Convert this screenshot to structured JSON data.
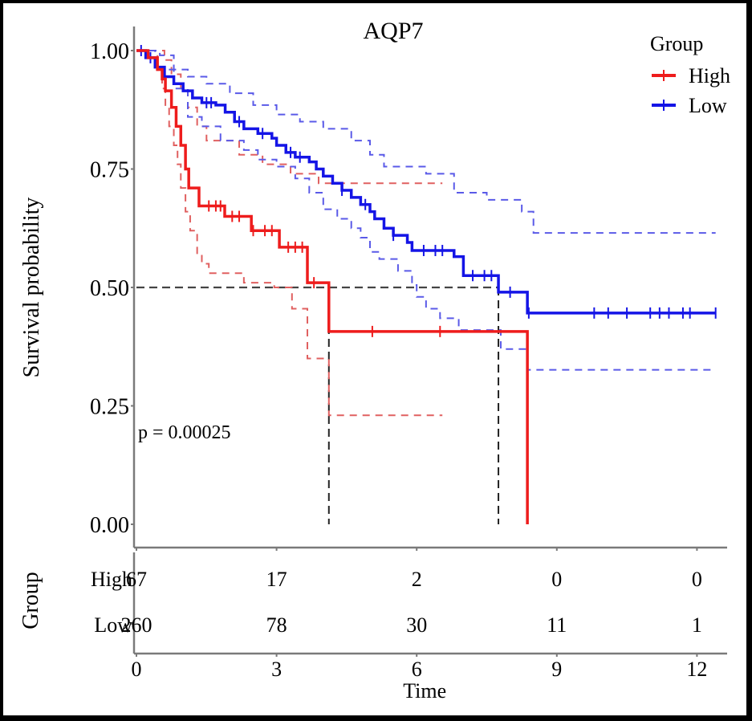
{
  "chart_data": {
    "type": "line",
    "subtype": "kaplan-meier",
    "title": "AQP7",
    "xlabel": "Time",
    "ylabel": "Survival probability",
    "xlim": [
      0,
      12.5
    ],
    "ylim": [
      0,
      1.0
    ],
    "x_ticks": [
      0,
      3,
      6,
      9,
      12
    ],
    "y_ticks": [
      "0.00",
      "0.25",
      "0.50",
      "0.75",
      "1.00"
    ],
    "y_tick_values": [
      0,
      0.25,
      0.5,
      0.75,
      1.0
    ],
    "grid": false,
    "legend": {
      "title": "Group",
      "placement": "top-right",
      "entries": [
        {
          "label": "High",
          "color": "#ee1c1c"
        },
        {
          "label": "Low",
          "color": "#1414e6"
        }
      ]
    },
    "annotation": "p = 0.00025",
    "median_line": {
      "y": 0.5,
      "median_times": [
        4.12,
        7.75
      ]
    },
    "series": [
      {
        "name": "High",
        "color": "#ee1c1c",
        "steps": [
          [
            0,
            1.0
          ],
          [
            0.25,
            0.985
          ],
          [
            0.45,
            0.96
          ],
          [
            0.55,
            0.94
          ],
          [
            0.62,
            0.915
          ],
          [
            0.75,
            0.88
          ],
          [
            0.85,
            0.84
          ],
          [
            0.95,
            0.8
          ],
          [
            1.05,
            0.75
          ],
          [
            1.12,
            0.71
          ],
          [
            1.34,
            0.672
          ],
          [
            1.89,
            0.65
          ],
          [
            2.46,
            0.62
          ],
          [
            3.06,
            0.585
          ],
          [
            3.66,
            0.51
          ],
          [
            4.12,
            0.407
          ],
          [
            8.37,
            0.0
          ]
        ],
        "end": 8.37,
        "censor_times": [
          1.55,
          1.7,
          1.8,
          2.05,
          2.2,
          2.5,
          2.75,
          2.9,
          3.25,
          3.4,
          3.55,
          3.8,
          5.05,
          6.5
        ],
        "ci_upper": [
          [
            0,
            1.0
          ],
          [
            0.6,
            0.98
          ],
          [
            0.75,
            0.95
          ],
          [
            0.95,
            0.92
          ],
          [
            1.1,
            0.88
          ],
          [
            1.3,
            0.84
          ],
          [
            1.5,
            0.81
          ],
          [
            2.2,
            0.78
          ],
          [
            2.7,
            0.76
          ],
          [
            3.3,
            0.74
          ],
          [
            3.9,
            0.72
          ]
        ],
        "ci_upper_end": 6.55,
        "ci_lower": [
          [
            0,
            1.0
          ],
          [
            0.45,
            0.96
          ],
          [
            0.55,
            0.92
          ],
          [
            0.62,
            0.88
          ],
          [
            0.7,
            0.84
          ],
          [
            0.8,
            0.8
          ],
          [
            0.88,
            0.76
          ],
          [
            0.95,
            0.71
          ],
          [
            1.05,
            0.66
          ],
          [
            1.15,
            0.62
          ],
          [
            1.3,
            0.57
          ],
          [
            1.4,
            0.55
          ],
          [
            1.55,
            0.53
          ],
          [
            2.3,
            0.51
          ],
          [
            2.95,
            0.5
          ],
          [
            3.33,
            0.455
          ],
          [
            3.66,
            0.35
          ],
          [
            4.12,
            0.23
          ]
        ],
        "ci_lower_end": 6.55
      },
      {
        "name": "Low",
        "color": "#1414e6",
        "steps": [
          [
            0,
            1.0
          ],
          [
            0.2,
            0.985
          ],
          [
            0.4,
            0.965
          ],
          [
            0.6,
            0.945
          ],
          [
            0.8,
            0.93
          ],
          [
            1.0,
            0.915
          ],
          [
            1.2,
            0.9
          ],
          [
            1.4,
            0.89
          ],
          [
            1.7,
            0.885
          ],
          [
            1.9,
            0.87
          ],
          [
            2.1,
            0.85
          ],
          [
            2.3,
            0.835
          ],
          [
            2.6,
            0.825
          ],
          [
            2.9,
            0.815
          ],
          [
            3.0,
            0.8
          ],
          [
            3.2,
            0.785
          ],
          [
            3.4,
            0.775
          ],
          [
            3.7,
            0.765
          ],
          [
            3.85,
            0.75
          ],
          [
            4.0,
            0.735
          ],
          [
            4.2,
            0.72
          ],
          [
            4.4,
            0.705
          ],
          [
            4.6,
            0.69
          ],
          [
            4.8,
            0.675
          ],
          [
            5.0,
            0.66
          ],
          [
            5.1,
            0.645
          ],
          [
            5.3,
            0.625
          ],
          [
            5.5,
            0.61
          ],
          [
            5.8,
            0.595
          ],
          [
            5.9,
            0.578
          ],
          [
            6.8,
            0.565
          ],
          [
            7.0,
            0.525
          ],
          [
            7.75,
            0.49
          ],
          [
            8.37,
            0.446
          ]
        ],
        "end": 12.4,
        "censor_times": [
          0.1,
          0.3,
          1.5,
          1.6,
          2.2,
          2.7,
          3.3,
          3.5,
          4.4,
          4.9,
          5.5,
          6.15,
          6.4,
          6.55,
          7.2,
          7.45,
          7.6,
          8.0,
          8.4,
          9.8,
          10.1,
          10.5,
          11.0,
          11.2,
          11.4,
          11.7,
          11.85,
          12.4
        ],
        "ci_upper": [
          [
            0,
            1.0
          ],
          [
            0.5,
            0.99
          ],
          [
            0.8,
            0.96
          ],
          [
            1.1,
            0.945
          ],
          [
            1.5,
            0.93
          ],
          [
            2.0,
            0.91
          ],
          [
            2.5,
            0.885
          ],
          [
            3.0,
            0.865
          ],
          [
            3.5,
            0.85
          ],
          [
            4.0,
            0.835
          ],
          [
            4.6,
            0.81
          ],
          [
            5.0,
            0.78
          ],
          [
            5.3,
            0.755
          ],
          [
            6.2,
            0.74
          ],
          [
            6.8,
            0.7
          ],
          [
            7.5,
            0.685
          ],
          [
            8.25,
            0.66
          ],
          [
            8.5,
            0.615
          ]
        ],
        "ci_upper_end": 12.4,
        "ci_lower": [
          [
            0,
            1.0
          ],
          [
            0.4,
            0.96
          ],
          [
            0.8,
            0.92
          ],
          [
            1.1,
            0.86
          ],
          [
            1.4,
            0.84
          ],
          [
            1.8,
            0.81
          ],
          [
            2.3,
            0.79
          ],
          [
            2.6,
            0.77
          ],
          [
            3.0,
            0.755
          ],
          [
            3.4,
            0.73
          ],
          [
            3.7,
            0.7
          ],
          [
            4.0,
            0.665
          ],
          [
            4.3,
            0.645
          ],
          [
            4.6,
            0.625
          ],
          [
            4.8,
            0.605
          ],
          [
            5.0,
            0.575
          ],
          [
            5.2,
            0.56
          ],
          [
            5.6,
            0.535
          ],
          [
            5.9,
            0.505
          ],
          [
            6.0,
            0.48
          ],
          [
            6.2,
            0.455
          ],
          [
            6.5,
            0.435
          ],
          [
            6.9,
            0.41
          ],
          [
            7.8,
            0.37
          ],
          [
            8.37,
            0.326
          ]
        ],
        "ci_lower_end": 12.4
      }
    ],
    "risk_table": {
      "title": "Group",
      "rows": [
        {
          "label": "High",
          "values": [
            67,
            17,
            2,
            0,
            0
          ]
        },
        {
          "label": "Low",
          "values": [
            260,
            78,
            30,
            11,
            1
          ]
        }
      ],
      "times": [
        0,
        3,
        6,
        9,
        12
      ]
    }
  }
}
